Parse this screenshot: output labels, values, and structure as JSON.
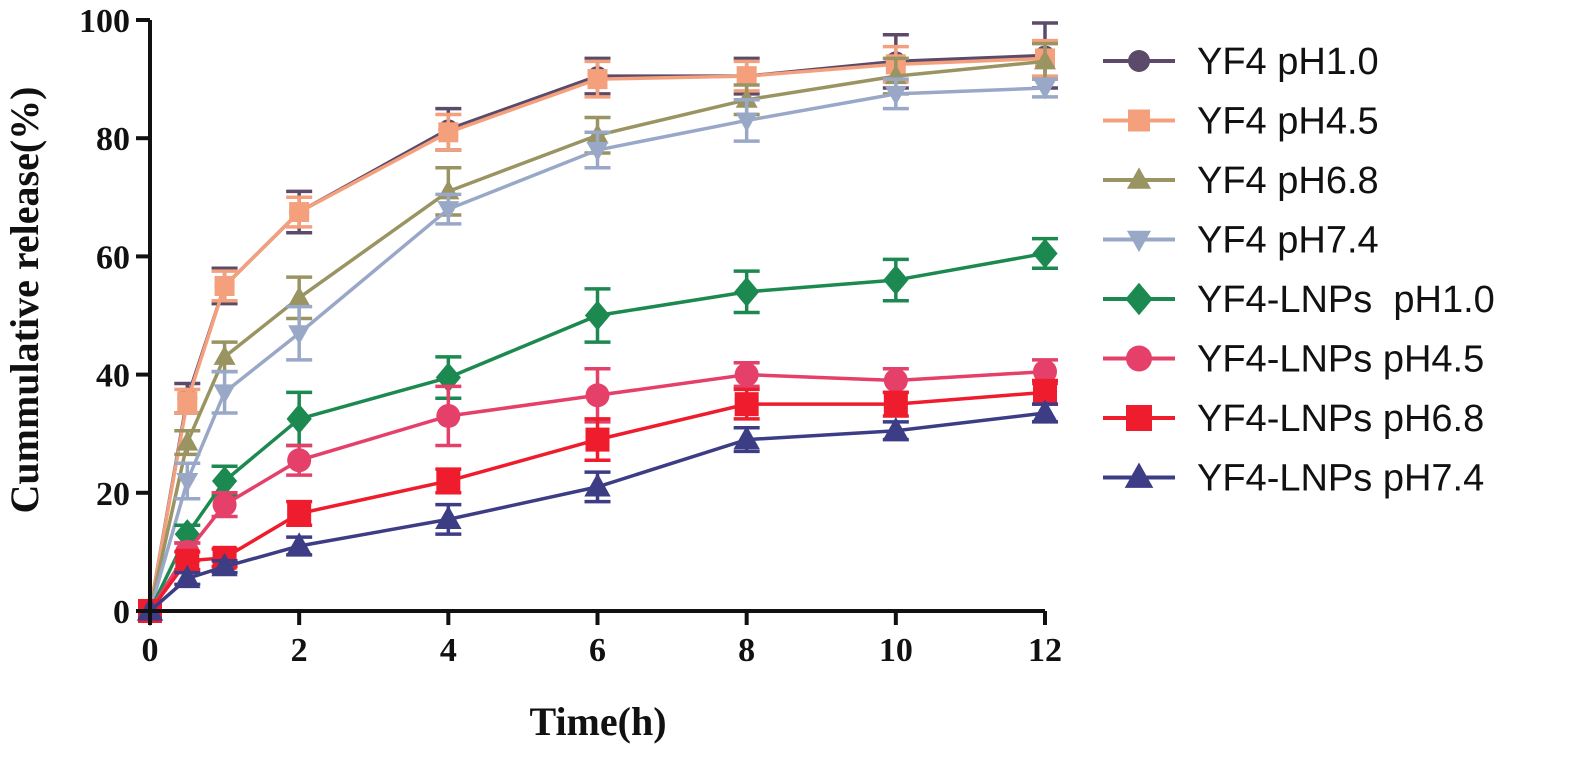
{
  "chart_data": {
    "type": "line",
    "title": "",
    "xlabel": "Time(h)",
    "ylabel": "Cummulative release(%)",
    "xlim": [
      0,
      12
    ],
    "ylim": [
      0,
      100
    ],
    "xticks": [
      0,
      2,
      4,
      6,
      8,
      10,
      12
    ],
    "yticks": [
      0,
      20,
      40,
      60,
      80,
      100
    ],
    "grid": false,
    "legend_position": "right",
    "x": [
      0,
      0.5,
      1,
      2,
      4,
      6,
      8,
      10,
      12
    ],
    "series": [
      {
        "name": "YF4 pH1.0",
        "color": "#5b4a6a",
        "marker": "circle",
        "values": [
          0,
          36,
          55,
          67.5,
          81.5,
          90.5,
          90.5,
          93,
          94
        ],
        "errors": [
          0,
          2.5,
          3,
          3.5,
          3.5,
          3,
          3,
          4.5,
          5.5
        ]
      },
      {
        "name": "YF4 pH4.5",
        "color": "#f4a07c",
        "marker": "square",
        "values": [
          0,
          35.5,
          55,
          67.5,
          81,
          90,
          90.5,
          92.5,
          93.5
        ],
        "errors": [
          0,
          2,
          2.5,
          2.5,
          3,
          3,
          2.5,
          3,
          3
        ]
      },
      {
        "name": "YF4 pH6.8",
        "color": "#9a9463",
        "marker": "triangle-up",
        "values": [
          0,
          28.5,
          43,
          53,
          71,
          80.5,
          86.5,
          90.5,
          93
        ],
        "errors": [
          0,
          2,
          2.5,
          3.5,
          4,
          3,
          2.5,
          3,
          3
        ]
      },
      {
        "name": "YF4 pH7.4",
        "color": "#9aa8c8",
        "marker": "triangle-down",
        "values": [
          0,
          22,
          37,
          47,
          68,
          78,
          83,
          87.5,
          88.5
        ],
        "errors": [
          0,
          3,
          3.5,
          4.5,
          2.5,
          3,
          3.5,
          2.5,
          1.5
        ]
      },
      {
        "name": "YF4-LNPs  pH1.0",
        "color": "#1c8a50",
        "marker": "diamond",
        "values": [
          0,
          13,
          22,
          32.5,
          39.5,
          50,
          54,
          56,
          60.5
        ],
        "errors": [
          0,
          1.5,
          2.5,
          4.5,
          3.5,
          4.5,
          3.5,
          3.5,
          2.5
        ]
      },
      {
        "name": "YF4-LNPs pH4.5",
        "color": "#e5406a",
        "marker": "circle",
        "values": [
          0,
          10,
          18,
          25.5,
          33,
          36.5,
          40,
          39,
          40.5
        ],
        "errors": [
          0,
          1.5,
          2,
          2.5,
          5,
          4.5,
          2,
          2,
          2
        ]
      },
      {
        "name": "YF4-LNPs pH6.8",
        "color": "#ee1c2c",
        "marker": "square",
        "values": [
          0,
          8.5,
          9,
          16.5,
          22,
          29,
          35,
          35,
          37
        ],
        "errors": [
          0,
          1.5,
          1.5,
          2,
          2,
          3.5,
          2.5,
          2,
          2
        ]
      },
      {
        "name": "YF4-LNPs pH7.4",
        "color": "#3d3d86",
        "marker": "triangle-up",
        "values": [
          0,
          5.5,
          7.5,
          11,
          15.5,
          21,
          29,
          30.5,
          33.5
        ],
        "errors": [
          0,
          1,
          1,
          1.5,
          2.5,
          2.5,
          2,
          1.5,
          1.5
        ]
      }
    ]
  }
}
